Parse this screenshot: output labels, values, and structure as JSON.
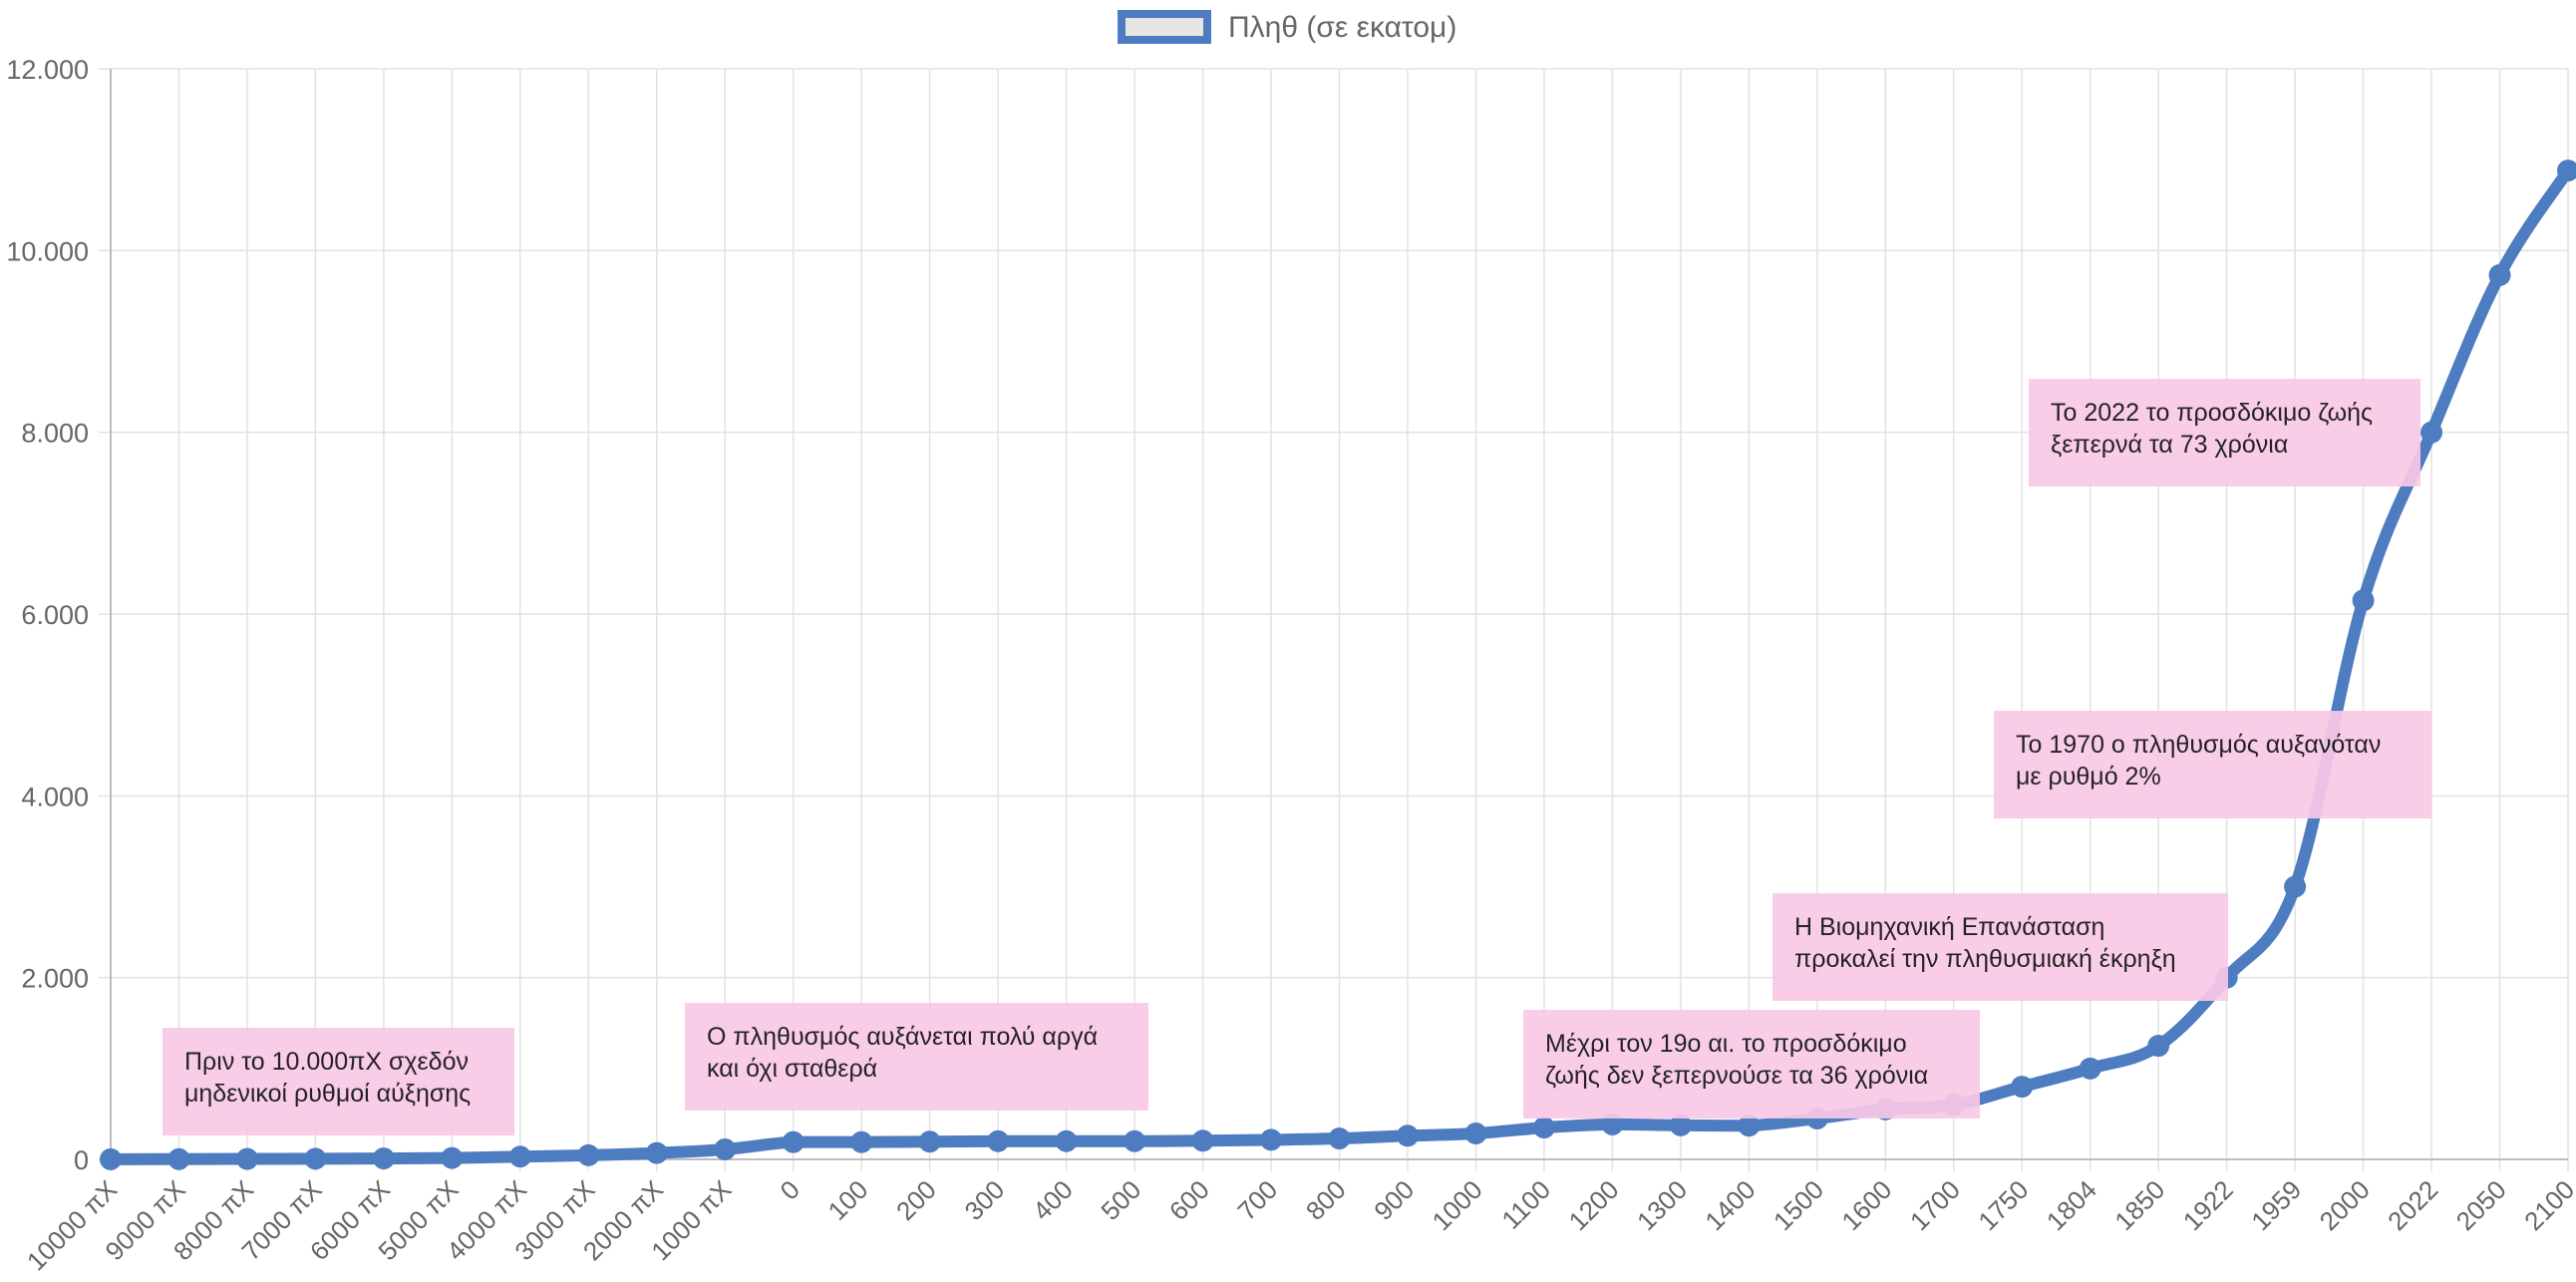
{
  "chart_data": {
    "type": "line",
    "legend": {
      "label": "Πληθ (σε εκατομ)",
      "position": "top-center"
    },
    "categories": [
      "10000 πΧ",
      "9000 πΧ",
      "8000 πΧ",
      "7000 πΧ",
      "6000 πΧ",
      "5000 πΧ",
      "4000 πΧ",
      "3000 πΧ",
      "2000 πΧ",
      "1000 πΧ",
      "0",
      "100",
      "200",
      "300",
      "400",
      "500",
      "600",
      "700",
      "800",
      "900",
      "1000",
      "1100",
      "1200",
      "1300",
      "1400",
      "1500",
      "1600",
      "1700",
      "1750",
      "1804",
      "1850",
      "1922",
      "1959",
      "2000",
      "2022",
      "2050",
      "2100"
    ],
    "series": [
      {
        "name": "Πληθ (σε εκατομ)",
        "color": "#4e7cc1",
        "values": [
          1,
          3,
          5,
          7,
          10,
          15,
          30,
          45,
          70,
          110,
          190,
          190,
          195,
          200,
          200,
          200,
          205,
          215,
          230,
          260,
          285,
          350,
          385,
          375,
          370,
          450,
          550,
          600,
          800,
          1000,
          1250,
          2000,
          3000,
          6150,
          8000,
          9730,
          10880
        ]
      }
    ],
    "ylim": [
      0,
      12000
    ],
    "yticks": [
      "0",
      "2.000",
      "4.000",
      "6.000",
      "8.000",
      "10.000",
      "12.000"
    ],
    "yticks_values": [
      0,
      2000,
      4000,
      6000,
      8000,
      10000,
      12000
    ],
    "grid": true,
    "annotations": [
      {
        "id": "a1",
        "lines": [
          "Πριν το 10.000πΧ σχεδόν",
          "μηδενικοί ρυθμοί αύξησης"
        ]
      },
      {
        "id": "a2",
        "lines": [
          "Ο πληθυσμός αυξάνεται πολύ αργά",
          "και όχι σταθερά"
        ]
      },
      {
        "id": "a3",
        "lines": [
          "Μέχρι τον 19ο αι. το προσδόκιμο",
          "ζωής δεν ξεπερνούσε τα 36 χρόνια"
        ]
      },
      {
        "id": "a4",
        "lines": [
          "Η Βιομηχανική Επανάσταση",
          "προκαλεί την πληθυσμιακή έκρηξη"
        ]
      },
      {
        "id": "a5",
        "lines": [
          "Το 1970 ο πληθυσμός αυξανόταν",
          "με ρυθμό 2%"
        ]
      },
      {
        "id": "a6",
        "lines": [
          "Το 2022 το προσδόκιμο ζωής",
          "ξεπερνά τα 73 χρόνια"
        ]
      }
    ]
  }
}
